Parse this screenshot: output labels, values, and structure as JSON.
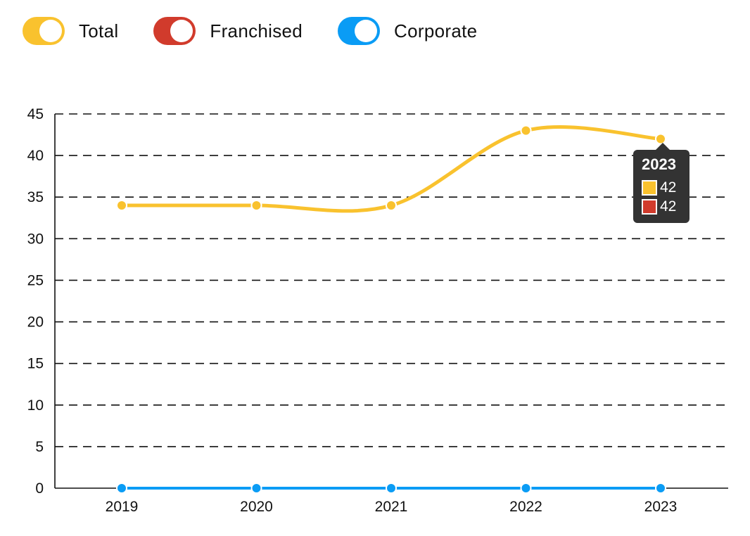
{
  "legend": [
    {
      "label": "Total",
      "color": "#F9C22E"
    },
    {
      "label": "Franchised",
      "color": "#D13B2C"
    },
    {
      "label": "Corporate",
      "color": "#0A9CF5"
    }
  ],
  "tooltip": {
    "title": "2023",
    "rows": [
      {
        "value": "42",
        "color": "#F9C22E"
      },
      {
        "value": "42",
        "color": "#D13B2C"
      }
    ]
  },
  "chart_data": {
    "type": "line",
    "smooth": true,
    "categories": [
      "2019",
      "2020",
      "2021",
      "2022",
      "2023"
    ],
    "series": [
      {
        "name": "Total",
        "color": "#F9C22E",
        "values": [
          34,
          34,
          34,
          43,
          42
        ]
      },
      {
        "name": "Franchised",
        "color": "#D13B2C",
        "values": [
          34,
          34,
          34,
          43,
          42
        ]
      },
      {
        "name": "Corporate",
        "color": "#0A9CF5",
        "values": [
          0,
          0,
          0,
          0,
          0
        ]
      }
    ],
    "yticks": [
      0,
      5,
      10,
      15,
      20,
      25,
      30,
      35,
      40,
      45
    ],
    "ylim": [
      0,
      45
    ],
    "grid": true,
    "legend_position": "top-left"
  }
}
